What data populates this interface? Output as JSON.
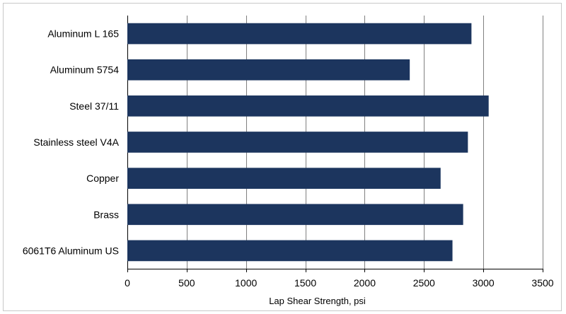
{
  "chart_data": {
    "type": "bar",
    "orientation": "horizontal",
    "categories": [
      "Aluminum L 165",
      "Aluminum 5754",
      "Steel 37/11",
      "Stainless steel V4A",
      "Copper",
      "Brass",
      "6061T6 Aluminum US"
    ],
    "values": [
      2900,
      2380,
      3045,
      2870,
      2640,
      2830,
      2740
    ],
    "title": "",
    "xlabel": "Lap Shear Strength, psi",
    "ylabel": "",
    "xlim": [
      0,
      3500
    ],
    "xticks": [
      0,
      500,
      1000,
      1500,
      2000,
      2500,
      3000,
      3500
    ],
    "grid": "vertical",
    "bar_color": "#1c355e",
    "grid_color": "#808080"
  }
}
